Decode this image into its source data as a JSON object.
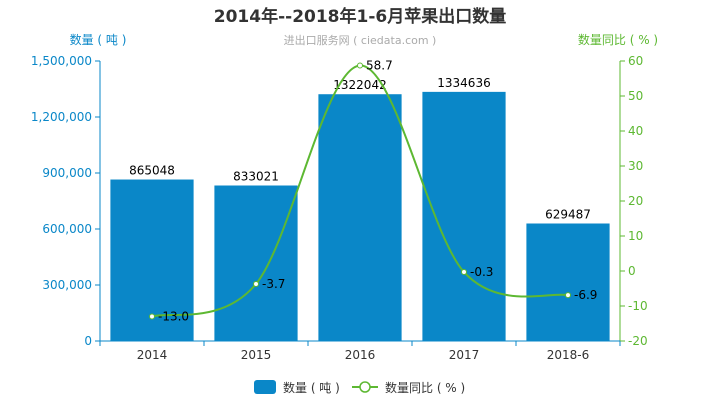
{
  "chart_data": {
    "type": "bar",
    "title": "2014年--2018年1-6月苹果出口数量",
    "subtitle": "进出口服务网 ( ciedata.com )",
    "categories": [
      "2014",
      "2015",
      "2016",
      "2017",
      "2018-6"
    ],
    "series": [
      {
        "name": "数量 ( 吨 )",
        "type": "bar",
        "axis": "left",
        "color": "#0a87c8",
        "values": [
          865048,
          833021,
          1322042,
          1334636,
          629487
        ],
        "labels": [
          "865048",
          "833021",
          "1322042",
          "1334636",
          "629487"
        ]
      },
      {
        "name": "数量同比 ( % )",
        "type": "line",
        "axis": "right",
        "color": "#5db832",
        "values": [
          -13.0,
          -3.7,
          58.7,
          -0.3,
          -6.9
        ],
        "labels": [
          "-13.0",
          "-3.7",
          "58.7",
          "-0.3",
          "-6.9"
        ]
      }
    ],
    "ylabel_left": "数量 ( 吨 )",
    "ylabel_right": "数量同比 ( % )",
    "ylim_left": [
      0,
      1500000
    ],
    "ylim_right": [
      -20,
      60
    ],
    "yticks_left": [
      "0",
      "300,000",
      "600,000",
      "900,000",
      "1,200,000",
      "1,500,000"
    ],
    "yticks_right": [
      "-20",
      "-10",
      "0",
      "10",
      "20",
      "30",
      "40",
      "50",
      "60"
    ],
    "left_axis_color": "#0a87c8",
    "right_axis_color": "#5db832",
    "grid": false,
    "legend_position": "bottom-center"
  }
}
